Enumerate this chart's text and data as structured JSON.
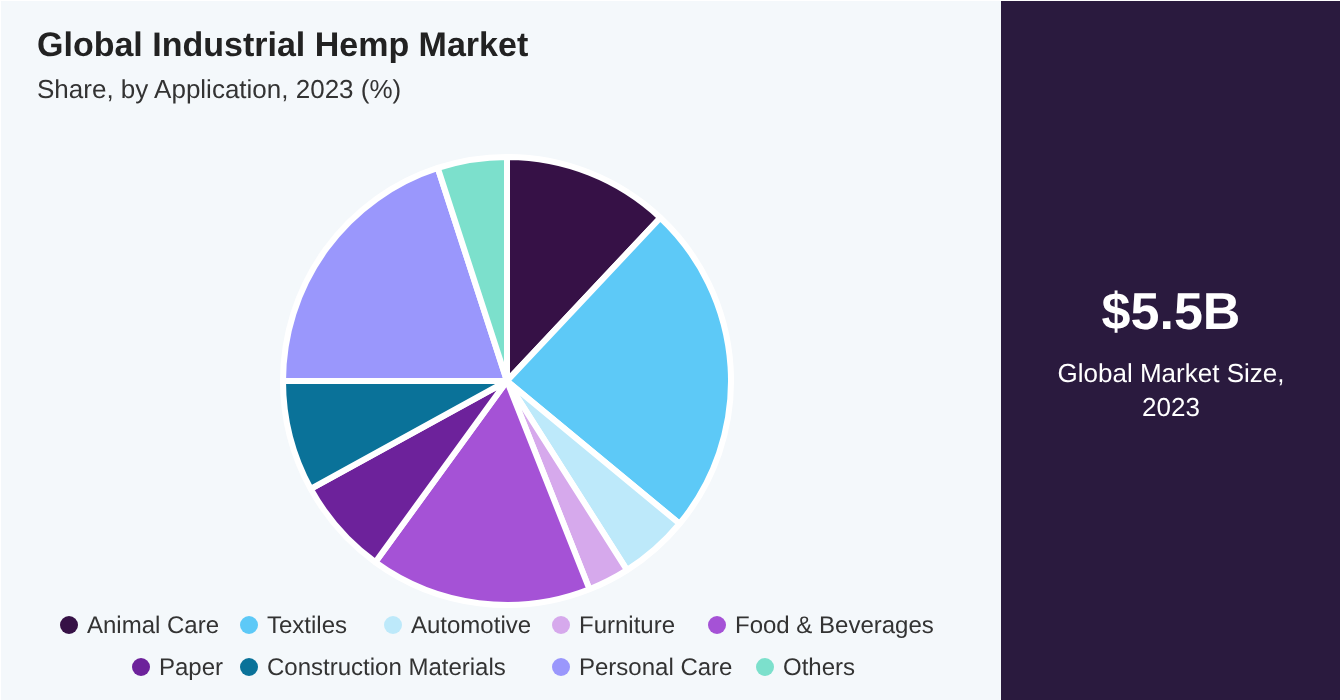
{
  "chart_data": {
    "type": "pie",
    "title": "Global Industrial Hemp Market",
    "subtitle": "Share, by Application, 2023 (%)",
    "categories": [
      "Animal Care",
      "Textiles",
      "Automotive",
      "Furniture",
      "Food & Beverages",
      "Paper",
      "Construction Materials",
      "Personal Care",
      "Others"
    ],
    "values": [
      12,
      24,
      5,
      3,
      16,
      7,
      8,
      20,
      5
    ],
    "colors": [
      "#361146",
      "#5dc9f7",
      "#bde9fa",
      "#d6a9ec",
      "#a552d6",
      "#6d229b",
      "#0a7299",
      "#9a97fc",
      "#7ce0cc"
    ],
    "legend": "bottom",
    "annotations": [
      "$5.5B",
      "Global Market Size, 2023"
    ]
  }
}
